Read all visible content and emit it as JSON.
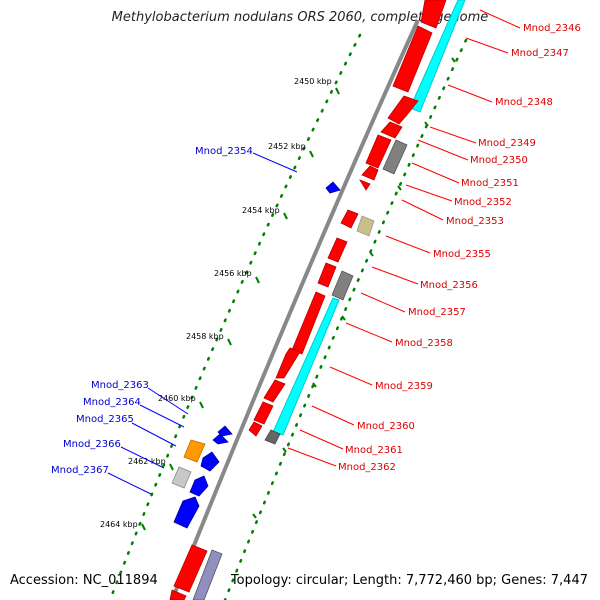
{
  "title": "Methylobacterium nodulans ORS 2060, complete genome",
  "accession": "Accession: NC_011894",
  "topology": "Topology: circular; Length: 7,772,460 bp; Genes: 7,447",
  "colors": {
    "forward": "#ff0000",
    "reverse": "#0000ff",
    "rna": "#00ffff",
    "grey": "#888888",
    "tan": "#c8c08a",
    "orange": "#ff9900",
    "backbone": "#888888",
    "ticks": "#008000"
  },
  "scale_labels": [
    "2450 kbp",
    "2452 kbp",
    "2454 kbp",
    "2456 kbp",
    "2458 kbp",
    "2460 kbp",
    "2462 kbp",
    "2464 kbp"
  ],
  "right_genes": [
    "Mnod_2346",
    "Mnod_2347",
    "Mnod_2348",
    "Mnod_2349",
    "Mnod_2350",
    "Mnod_2351",
    "Mnod_2352",
    "Mnod_2353",
    "Mnod_2355",
    "Mnod_2356",
    "Mnod_2357",
    "Mnod_2358",
    "Mnod_2359",
    "Mnod_2360",
    "Mnod_2361",
    "Mnod_2362"
  ],
  "left_genes": [
    "Mnod_2354",
    "Mnod_2363",
    "Mnod_2364",
    "Mnod_2365",
    "Mnod_2366",
    "Mnod_2367"
  ]
}
